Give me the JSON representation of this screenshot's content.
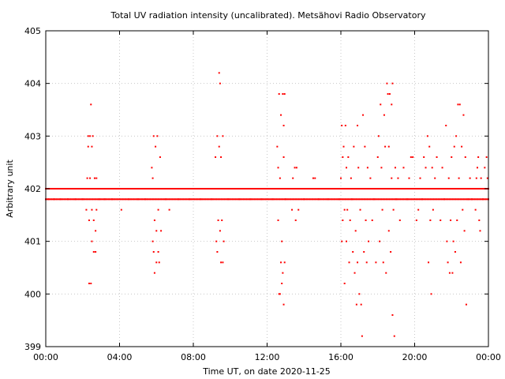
{
  "chart_data": {
    "type": "scatter",
    "title": "Total UV radiation intensity (uncalibrated). Metsähovi Radio Observatory",
    "xlabel": "Time UT, on date 2020-11-25",
    "ylabel": "Arbitrary unit",
    "ylim": [
      399,
      405
    ],
    "xlim_hours": [
      0,
      24
    ],
    "yticks": [
      399,
      400,
      401,
      402,
      403,
      404,
      405
    ],
    "ytick_labels": [
      "399",
      "400",
      "401",
      "402",
      "403",
      "404",
      "405"
    ],
    "xticks_hours": [
      0,
      4,
      8,
      12,
      16,
      20,
      24
    ],
    "xtick_labels": [
      "00:00",
      "04:00",
      "08:00",
      "12:00",
      "16:00",
      "20:00",
      "00:00"
    ],
    "grid": true,
    "point_color": "#ff0000",
    "series": [
      {
        "values_note": "",
        "points": [
          [
            0.05,
            402.0
          ],
          [
            0.15,
            401.8
          ],
          [
            0.3,
            402.0
          ],
          [
            0.45,
            401.8
          ],
          [
            0.6,
            402.0
          ],
          [
            0.8,
            401.8
          ],
          [
            1.0,
            402.0
          ],
          [
            1.2,
            401.8
          ],
          [
            1.4,
            402.0
          ],
          [
            1.6,
            401.8
          ],
          [
            1.8,
            402.0
          ],
          [
            2.0,
            401.8
          ],
          [
            2.1,
            402.0
          ],
          [
            2.2,
            401.6
          ],
          [
            2.25,
            402.2
          ],
          [
            2.3,
            402.8
          ],
          [
            2.3,
            403.0
          ],
          [
            2.35,
            401.4
          ],
          [
            2.35,
            400.2
          ],
          [
            2.4,
            403.0
          ],
          [
            2.4,
            402.2
          ],
          [
            2.45,
            400.2
          ],
          [
            2.45,
            403.6
          ],
          [
            2.5,
            401.0
          ],
          [
            2.5,
            401.6
          ],
          [
            2.5,
            402.8
          ],
          [
            2.55,
            403.0
          ],
          [
            2.6,
            401.4
          ],
          [
            2.6,
            400.8
          ],
          [
            2.65,
            402.2
          ],
          [
            2.7,
            400.8
          ],
          [
            2.7,
            401.2
          ],
          [
            2.75,
            402.2
          ],
          [
            2.75,
            401.6
          ],
          [
            2.8,
            402.0
          ],
          [
            2.9,
            401.8
          ],
          [
            3.0,
            402.0
          ],
          [
            3.2,
            401.8
          ],
          [
            3.4,
            402.0
          ],
          [
            3.6,
            401.8
          ],
          [
            3.8,
            402.0
          ],
          [
            4.1,
            401.6
          ],
          [
            4.3,
            402.0
          ],
          [
            4.5,
            401.8
          ],
          [
            4.8,
            402.0
          ],
          [
            5.0,
            401.8
          ],
          [
            5.2,
            402.0
          ],
          [
            5.4,
            401.8
          ],
          [
            5.6,
            402.0
          ],
          [
            5.75,
            402.4
          ],
          [
            5.8,
            401.0
          ],
          [
            5.8,
            402.2
          ],
          [
            5.85,
            400.8
          ],
          [
            5.85,
            403.0
          ],
          [
            5.9,
            400.4
          ],
          [
            5.9,
            401.4
          ],
          [
            5.95,
            402.8
          ],
          [
            6.0,
            400.6
          ],
          [
            6.0,
            401.2
          ],
          [
            6.05,
            403.0
          ],
          [
            6.1,
            400.8
          ],
          [
            6.1,
            401.6
          ],
          [
            6.15,
            400.6
          ],
          [
            6.2,
            402.6
          ],
          [
            6.25,
            401.2
          ],
          [
            6.3,
            402.0
          ],
          [
            6.5,
            401.8
          ],
          [
            6.7,
            401.6
          ],
          [
            6.9,
            402.0
          ],
          [
            7.2,
            401.8
          ],
          [
            7.5,
            402.0
          ],
          [
            7.8,
            401.8
          ],
          [
            8.1,
            402.0
          ],
          [
            8.4,
            401.8
          ],
          [
            8.7,
            402.0
          ],
          [
            9.0,
            401.8
          ],
          [
            9.2,
            402.6
          ],
          [
            9.25,
            401.0
          ],
          [
            9.3,
            403.0
          ],
          [
            9.3,
            400.8
          ],
          [
            9.35,
            401.4
          ],
          [
            9.4,
            404.2
          ],
          [
            9.4,
            402.8
          ],
          [
            9.45,
            404.0
          ],
          [
            9.45,
            401.2
          ],
          [
            9.5,
            402.6
          ],
          [
            9.5,
            400.6
          ],
          [
            9.55,
            401.4
          ],
          [
            9.6,
            403.0
          ],
          [
            9.6,
            400.6
          ],
          [
            9.65,
            401.0
          ],
          [
            9.7,
            402.0
          ],
          [
            9.9,
            401.8
          ],
          [
            10.2,
            402.0
          ],
          [
            10.5,
            401.8
          ],
          [
            10.8,
            402.0
          ],
          [
            11.1,
            401.8
          ],
          [
            11.4,
            402.0
          ],
          [
            11.7,
            401.8
          ],
          [
            12.0,
            402.0
          ],
          [
            12.3,
            401.8
          ],
          [
            12.55,
            402.8
          ],
          [
            12.6,
            401.4
          ],
          [
            12.6,
            402.4
          ],
          [
            12.65,
            403.8
          ],
          [
            12.65,
            400.0
          ],
          [
            12.7,
            402.2
          ],
          [
            12.7,
            400.0
          ],
          [
            12.75,
            403.4
          ],
          [
            12.75,
            400.6
          ],
          [
            12.8,
            401.0
          ],
          [
            12.8,
            400.2
          ],
          [
            12.85,
            403.8
          ],
          [
            12.85,
            400.4
          ],
          [
            12.9,
            402.6
          ],
          [
            12.9,
            399.8
          ],
          [
            12.9,
            403.2
          ],
          [
            12.95,
            403.8
          ],
          [
            12.95,
            400.6
          ],
          [
            13.0,
            401.8
          ],
          [
            13.2,
            402.0
          ],
          [
            13.35,
            401.6
          ],
          [
            13.4,
            402.2
          ],
          [
            13.5,
            402.4
          ],
          [
            13.55,
            401.4
          ],
          [
            13.6,
            402.4
          ],
          [
            13.7,
            401.6
          ],
          [
            13.8,
            402.0
          ],
          [
            14.0,
            401.8
          ],
          [
            14.3,
            402.0
          ],
          [
            14.5,
            402.2
          ],
          [
            14.6,
            402.2
          ],
          [
            14.8,
            401.8
          ],
          [
            15.0,
            402.0
          ],
          [
            15.3,
            401.8
          ],
          [
            15.6,
            402.0
          ],
          [
            15.9,
            401.8
          ],
          [
            16.0,
            402.2
          ],
          [
            16.05,
            403.2
          ],
          [
            16.05,
            401.0
          ],
          [
            16.1,
            402.6
          ],
          [
            16.1,
            401.4
          ],
          [
            16.15,
            402.8
          ],
          [
            16.2,
            401.6
          ],
          [
            16.2,
            400.2
          ],
          [
            16.25,
            403.2
          ],
          [
            16.3,
            402.4
          ],
          [
            16.3,
            401.0
          ],
          [
            16.35,
            401.6
          ],
          [
            16.4,
            402.6
          ],
          [
            16.45,
            400.6
          ],
          [
            16.5,
            401.4
          ],
          [
            16.55,
            402.2
          ],
          [
            16.6,
            401.8
          ],
          [
            16.65,
            400.8
          ],
          [
            16.7,
            402.8
          ],
          [
            16.75,
            400.4
          ],
          [
            16.8,
            401.2
          ],
          [
            16.85,
            399.8
          ],
          [
            16.9,
            403.2
          ],
          [
            16.9,
            400.6
          ],
          [
            16.95,
            402.4
          ],
          [
            17.0,
            400.0
          ],
          [
            17.05,
            401.6
          ],
          [
            17.1,
            399.8
          ],
          [
            17.15,
            399.2
          ],
          [
            17.2,
            403.4
          ],
          [
            17.25,
            400.8
          ],
          [
            17.3,
            402.8
          ],
          [
            17.35,
            401.4
          ],
          [
            17.4,
            400.6
          ],
          [
            17.45,
            402.4
          ],
          [
            17.5,
            401.0
          ],
          [
            17.6,
            402.2
          ],
          [
            17.7,
            401.4
          ],
          [
            17.8,
            401.8
          ],
          [
            17.9,
            400.6
          ],
          [
            18.0,
            402.6
          ],
          [
            18.05,
            403.0
          ],
          [
            18.1,
            401.0
          ],
          [
            18.15,
            403.6
          ],
          [
            18.2,
            402.4
          ],
          [
            18.25,
            401.6
          ],
          [
            18.3,
            400.6
          ],
          [
            18.35,
            403.4
          ],
          [
            18.4,
            402.8
          ],
          [
            18.45,
            400.4
          ],
          [
            18.5,
            404.0
          ],
          [
            18.55,
            403.8
          ],
          [
            18.6,
            402.8
          ],
          [
            18.6,
            401.2
          ],
          [
            18.65,
            403.8
          ],
          [
            18.7,
            400.8
          ],
          [
            18.75,
            403.6
          ],
          [
            18.75,
            402.2
          ],
          [
            18.8,
            404.0
          ],
          [
            18.8,
            399.6
          ],
          [
            18.85,
            401.6
          ],
          [
            18.9,
            399.2
          ],
          [
            18.95,
            402.4
          ],
          [
            19.0,
            401.8
          ],
          [
            19.1,
            402.2
          ],
          [
            19.2,
            401.4
          ],
          [
            19.3,
            402.0
          ],
          [
            19.4,
            402.4
          ],
          [
            19.5,
            402.0
          ],
          [
            19.6,
            401.8
          ],
          [
            19.7,
            402.2
          ],
          [
            19.8,
            402.6
          ],
          [
            19.9,
            402.6
          ],
          [
            20.0,
            402.0
          ],
          [
            20.1,
            401.4
          ],
          [
            20.2,
            401.6
          ],
          [
            20.3,
            402.2
          ],
          [
            20.4,
            401.8
          ],
          [
            20.5,
            402.6
          ],
          [
            20.6,
            402.4
          ],
          [
            20.7,
            403.0
          ],
          [
            20.75,
            400.6
          ],
          [
            20.8,
            402.8
          ],
          [
            20.85,
            401.4
          ],
          [
            20.9,
            400.0
          ],
          [
            20.95,
            402.4
          ],
          [
            21.0,
            401.6
          ],
          [
            21.1,
            402.2
          ],
          [
            21.2,
            402.6
          ],
          [
            21.3,
            402.0
          ],
          [
            21.4,
            401.4
          ],
          [
            21.5,
            402.4
          ],
          [
            21.6,
            401.8
          ],
          [
            21.7,
            403.2
          ],
          [
            21.75,
            401.0
          ],
          [
            21.8,
            400.6
          ],
          [
            21.85,
            402.2
          ],
          [
            21.9,
            400.4
          ],
          [
            21.95,
            401.4
          ],
          [
            22.0,
            402.6
          ],
          [
            22.05,
            400.4
          ],
          [
            22.1,
            401.0
          ],
          [
            22.15,
            402.8
          ],
          [
            22.2,
            400.8
          ],
          [
            22.25,
            403.0
          ],
          [
            22.3,
            401.4
          ],
          [
            22.35,
            403.6
          ],
          [
            22.4,
            402.2
          ],
          [
            22.45,
            403.6
          ],
          [
            22.5,
            400.6
          ],
          [
            22.55,
            402.8
          ],
          [
            22.6,
            401.6
          ],
          [
            22.65,
            403.4
          ],
          [
            22.7,
            401.2
          ],
          [
            22.75,
            402.6
          ],
          [
            22.8,
            399.8
          ],
          [
            22.85,
            402.0
          ],
          [
            22.9,
            401.8
          ],
          [
            23.0,
            402.2
          ],
          [
            23.1,
            401.8
          ],
          [
            23.2,
            402.0
          ],
          [
            23.3,
            401.6
          ],
          [
            23.35,
            402.2
          ],
          [
            23.4,
            402.4
          ],
          [
            23.45,
            402.6
          ],
          [
            23.5,
            401.4
          ],
          [
            23.55,
            401.2
          ],
          [
            23.6,
            402.2
          ],
          [
            23.7,
            401.8
          ],
          [
            23.8,
            402.4
          ],
          [
            23.9,
            402.6
          ],
          [
            23.95,
            402.2
          ]
        ],
        "baseline_bands": [
          {
            "y": 402.0,
            "from_hour": 0.0,
            "to_hour": 24.0
          },
          {
            "y": 401.8,
            "from_hour": 0.0,
            "to_hour": 24.0
          }
        ]
      }
    ]
  }
}
